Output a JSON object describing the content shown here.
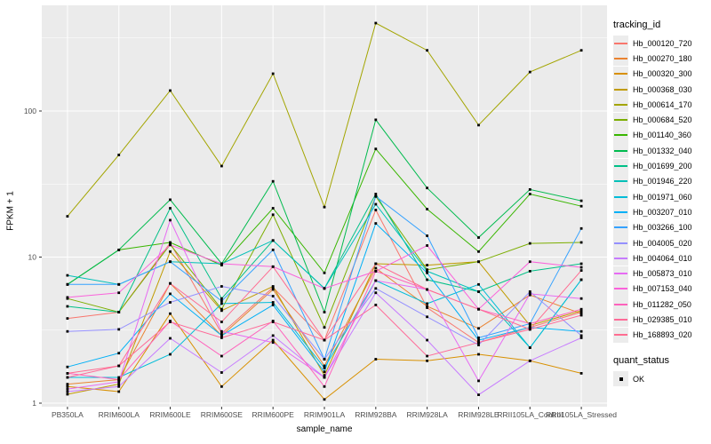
{
  "chart_data": {
    "type": "line",
    "title": "",
    "xlabel": "sample_name",
    "ylabel": "FPKM + 1",
    "y_scale": "log10",
    "ylim": [
      1,
      530
    ],
    "y_ticks": [
      1,
      10,
      100
    ],
    "y_minor_gridlines": [
      3.162,
      31.62,
      316.2
    ],
    "grid": true,
    "panel_bg": "#EBEBEB",
    "grid_color": "#FFFFFF",
    "tick_label_color": "#4D4D4D",
    "point_marker": "black-square",
    "legend_position": "right",
    "legend_title": "tracking_id",
    "legend2": {
      "title": "quant_status",
      "items": [
        {
          "label": "OK",
          "marker": "black-square"
        }
      ]
    },
    "categories": [
      "PB350LA",
      "RRIM600LA",
      "RRIM600LE",
      "RRIM600SE",
      "RRIM600PE",
      "RRIM901LA",
      "RRIM928BA",
      "RRIM928LA",
      "RRIM928LE",
      "RRII105LA_Control",
      "RRII105LA_Stressed"
    ],
    "series": [
      {
        "name": "Hb_000120_720",
        "color": "#F8766D",
        "values": [
          3.8,
          4.2,
          12.5,
          3.0,
          6.2,
          2.7,
          21,
          4.5,
          2.6,
          3.3,
          4.2
        ]
      },
      {
        "name": "Hb_000270_180",
        "color": "#EA8331",
        "values": [
          1.35,
          1.45,
          6.6,
          2.9,
          6.0,
          1.8,
          8.4,
          4.6,
          3.25,
          5.5,
          4.1
        ]
      },
      {
        "name": "Hb_000320_300",
        "color": "#D89000",
        "values": [
          1.3,
          1.2,
          4.1,
          1.3,
          2.7,
          1.06,
          2.0,
          1.95,
          2.16,
          1.95,
          1.6
        ]
      },
      {
        "name": "Hb_000368_030",
        "color": "#C09B00",
        "values": [
          1.15,
          1.35,
          10.9,
          4.3,
          6.3,
          1.55,
          9.0,
          8.8,
          9.3,
          3.4,
          4.3
        ]
      },
      {
        "name": "Hb_000614_170",
        "color": "#A3A500",
        "values": [
          19,
          50,
          138,
          42,
          180,
          22,
          400,
          260,
          80,
          185,
          260
        ]
      },
      {
        "name": "Hb_000684_520",
        "color": "#7CAE00",
        "values": [
          5.2,
          4.2,
          12.2,
          4.4,
          19.5,
          3.3,
          26,
          8.2,
          9.3,
          12.4,
          12.6
        ]
      },
      {
        "name": "Hb_001140_360",
        "color": "#39B600",
        "values": [
          6.5,
          11.2,
          12.6,
          8.8,
          21.6,
          7.8,
          55,
          21.3,
          10.9,
          27,
          22.3
        ]
      },
      {
        "name": "Hb_001332_040",
        "color": "#00BB4E",
        "values": [
          6.5,
          11.2,
          24.7,
          9.0,
          33,
          4.2,
          87,
          29.7,
          13.6,
          29,
          24.3
        ]
      },
      {
        "name": "Hb_001699_200",
        "color": "#00C087",
        "values": [
          4.6,
          4.2,
          21.6,
          5.2,
          13,
          6.1,
          27,
          7.0,
          5.8,
          8.0,
          9.0
        ]
      },
      {
        "name": "Hb_001946_220",
        "color": "#00C0B8",
        "values": [
          7.5,
          6.5,
          9.3,
          9.0,
          13,
          6.1,
          23,
          8.0,
          5.8,
          2.4,
          7.0
        ]
      },
      {
        "name": "Hb_001971_060",
        "color": "#00BCD8",
        "values": [
          1.5,
          1.5,
          2.16,
          4.8,
          4.9,
          1.74,
          6.9,
          4.8,
          6.5,
          2.4,
          7.0
        ]
      },
      {
        "name": "Hb_003207_010",
        "color": "#00B0F6",
        "values": [
          1.77,
          2.2,
          5.6,
          2.9,
          4.7,
          1.64,
          17,
          7.8,
          2.7,
          3.3,
          3.1
        ]
      },
      {
        "name": "Hb_003266_100",
        "color": "#35A2FF",
        "values": [
          6.5,
          6.5,
          9.3,
          5.0,
          11.2,
          2.0,
          26,
          14,
          2.8,
          3.5,
          15.7
        ]
      },
      {
        "name": "Hb_004005_020",
        "color": "#9590FF",
        "values": [
          3.1,
          3.2,
          4.9,
          6.3,
          5.4,
          2.0,
          6.1,
          3.9,
          2.5,
          5.8,
          2.9
        ]
      },
      {
        "name": "Hb_004064_010",
        "color": "#C77CFF",
        "values": [
          1.2,
          1.3,
          2.78,
          1.62,
          2.9,
          1.5,
          5.7,
          2.7,
          1.14,
          1.95,
          2.8
        ]
      },
      {
        "name": "Hb_005873_010",
        "color": "#E76BF3",
        "values": [
          1.25,
          1.4,
          17.9,
          3.1,
          2.6,
          1.5,
          6.9,
          6.0,
          1.42,
          5.6,
          5.2
        ]
      },
      {
        "name": "Hb_007153_040",
        "color": "#FA62DB",
        "values": [
          5.3,
          5.7,
          12.1,
          9.0,
          8.6,
          6.1,
          8.0,
          12,
          4.4,
          9.3,
          8.5
        ]
      },
      {
        "name": "Hb_011282_050",
        "color": "#FF62BC",
        "values": [
          1.6,
          1.45,
          3.65,
          2.1,
          3.65,
          1.3,
          8.0,
          6.0,
          4.4,
          3.5,
          4.4
        ]
      },
      {
        "name": "Hb_029385_010",
        "color": "#FF6A98",
        "values": [
          1.5,
          1.8,
          3.6,
          2.8,
          3.6,
          2.7,
          4.7,
          2.1,
          2.6,
          3.2,
          4.0
        ]
      },
      {
        "name": "Hb_168893_020",
        "color": "#FF6C91",
        "values": [
          1.6,
          1.8,
          6.6,
          3.6,
          8.6,
          2.7,
          9.0,
          6.0,
          4.4,
          3.2,
          8.1
        ]
      }
    ]
  }
}
